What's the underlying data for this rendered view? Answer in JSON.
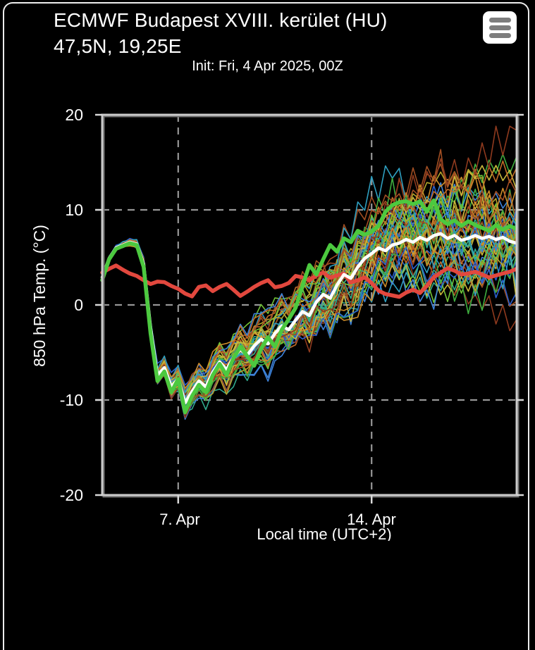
{
  "header": {
    "title_line1": "ECMWF Budapest XVIII. kerület (HU)",
    "title_line2": "47,5N, 19,25E",
    "init_line": "Init: Fri, 4 Apr 2025, 00Z"
  },
  "menu": {
    "icon": "hamburger-icon"
  },
  "chart_data": {
    "type": "line",
    "title": "ECMWF ensemble 850 hPa temperature plume",
    "ylabel": "850 hPa Temp. (°C)",
    "xlabel": "Local time (UTC+2)",
    "ylim": [
      -20,
      20
    ],
    "x_start": 4.25,
    "x_end": 19.25,
    "x_step": 0.25,
    "x_unit": "april-day",
    "yticks": [
      {
        "value": 20,
        "label": "20"
      },
      {
        "value": 10,
        "label": "10"
      },
      {
        "value": 0,
        "label": "0"
      },
      {
        "value": -10,
        "label": "-10"
      },
      {
        "value": -20,
        "label": "-20"
      }
    ],
    "xticks": [
      {
        "value": 7,
        "label": "7. Apr"
      },
      {
        "value": 14,
        "label": "14. Apr"
      }
    ],
    "grid": {
      "y_values": [
        10,
        0,
        -10
      ],
      "x_values": [
        7,
        14
      ],
      "style": "dashed"
    },
    "colors": {
      "background": "#000000",
      "plot_border": "#cbcbcb",
      "plot_border_shadow": "#6e6e6e",
      "grid": "#969696",
      "tick": "#d9d9d9",
      "climatology": "#e2483e",
      "ensemble_mean": "#ffffff",
      "control_run": "#4cc93f"
    },
    "series": [
      {
        "key": "climatology",
        "color": "#e2483e",
        "width": 5.5,
        "values": [
          3.4,
          3.8,
          4.15,
          3.7,
          3.3,
          3.05,
          2.6,
          2.2,
          2.45,
          2.4,
          2.0,
          1.7,
          1.2,
          0.9,
          1.9,
          2.05,
          1.45,
          1.9,
          2.2,
          1.6,
          0.95,
          1.4,
          1.9,
          2.3,
          2.6,
          1.85,
          2.0,
          2.3,
          3.05,
          2.9,
          2.6,
          3.1,
          3.4,
          2.85,
          3.1,
          3.3,
          2.35,
          2.6,
          2.9,
          2.3,
          1.5,
          1.15,
          1.0,
          0.85,
          1.3,
          1.6,
          1.25,
          2.0,
          2.9,
          3.4,
          3.85,
          3.6,
          3.2,
          3.3,
          3.5,
          3.2,
          2.9,
          3.1,
          3.3,
          3.5,
          3.8
        ]
      },
      {
        "key": "ensemble_mean",
        "color": "#ffffff",
        "width": 4.5,
        "values": [
          2.9,
          4.9,
          6.0,
          6.3,
          6.6,
          6.4,
          4.3,
          -2.4,
          -7.4,
          -6.6,
          -8.6,
          -7.8,
          -10.3,
          -9.1,
          -8.0,
          -8.6,
          -7.1,
          -6.0,
          -6.8,
          -5.5,
          -4.7,
          -5.3,
          -4.3,
          -3.6,
          -4.1,
          -3.0,
          -2.2,
          -2.6,
          -1.6,
          -0.7,
          -1.1,
          0.3,
          1.1,
          0.7,
          2.1,
          3.2,
          2.8,
          4.0,
          4.9,
          5.4,
          6.0,
          5.7,
          6.3,
          6.5,
          6.9,
          6.6,
          7.1,
          6.8,
          7.3,
          7.5,
          7.0,
          7.3,
          6.8,
          7.0,
          7.3,
          7.0,
          7.2,
          6.9,
          7.1,
          6.7,
          6.5
        ]
      },
      {
        "key": "control_run",
        "color": "#4cc93f",
        "width": 5.5,
        "values": [
          2.6,
          4.8,
          5.9,
          6.2,
          6.5,
          6.3,
          4.0,
          -3.0,
          -8.0,
          -7.0,
          -9.2,
          -7.8,
          -11.3,
          -9.6,
          -8.4,
          -9.2,
          -7.4,
          -6.2,
          -7.4,
          -5.6,
          -4.4,
          -5.4,
          -6.4,
          -4.6,
          -3.4,
          -4.4,
          -2.6,
          -1.5,
          -0.3,
          2.0,
          4.2,
          3.2,
          4.8,
          6.3,
          5.6,
          7.0,
          6.6,
          7.8,
          7.4,
          7.7,
          8.3,
          9.8,
          10.5,
          10.8,
          10.9,
          10.6,
          10.9,
          9.8,
          11.0,
          9.0,
          8.5,
          8.9,
          8.3,
          8.8,
          8.4,
          8.1,
          7.8,
          8.4,
          7.9,
          8.3,
          8.0
        ]
      }
    ],
    "ensemble": {
      "member_count": 48,
      "line_width": 1.6,
      "seed": 20250404,
      "anchor_step_days": 1.5,
      "base_series": "ensemble_mean",
      "sigma_anchors": [
        [
          4.25,
          0.35
        ],
        [
          5.5,
          0.5
        ],
        [
          6.25,
          1.0
        ],
        [
          7.0,
          1.3
        ],
        [
          8.0,
          1.8
        ],
        [
          9.0,
          2.2
        ],
        [
          10.0,
          2.6
        ],
        [
          11.0,
          3.1
        ],
        [
          12.0,
          3.6
        ],
        [
          13.0,
          4.1
        ],
        [
          14.0,
          4.6
        ],
        [
          15.0,
          5.0
        ],
        [
          16.0,
          5.4
        ],
        [
          17.0,
          5.7
        ],
        [
          18.0,
          5.9
        ],
        [
          19.25,
          6.2
        ]
      ],
      "palette": [
        "#2a5fce",
        "#3d82d9",
        "#2e9fc0",
        "#31a98c",
        "#3fae3f",
        "#72c437",
        "#b4a42b",
        "#c9b83b",
        "#cd8c2a",
        "#c06c27",
        "#a14e22",
        "#8f3a1e"
      ]
    },
    "legend": {
      "visible": false
    }
  }
}
